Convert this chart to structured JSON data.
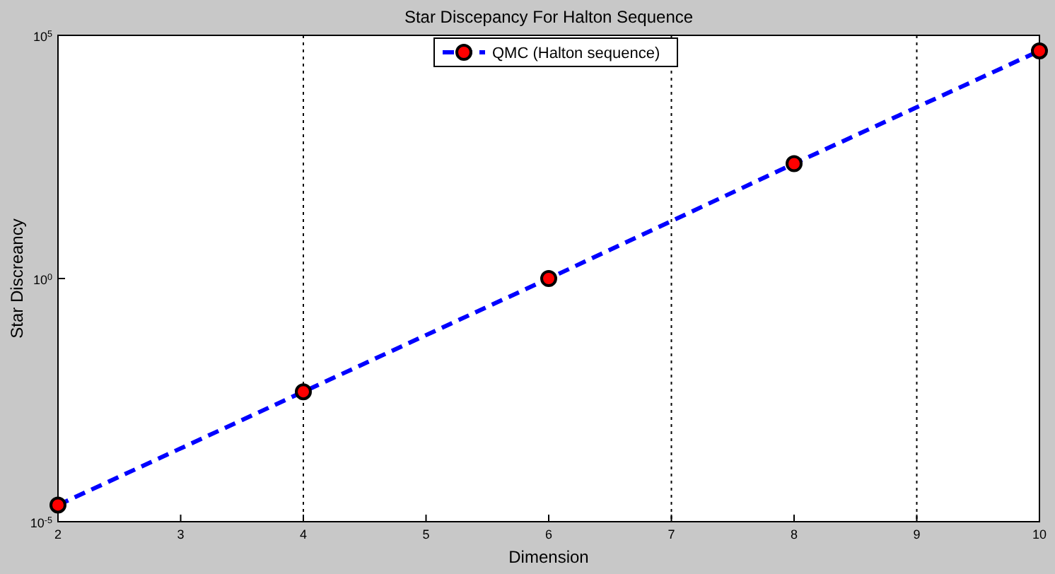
{
  "chart_data": {
    "type": "line",
    "title": "Star Discepancy For Halton Sequence",
    "xlabel": "Dimension",
    "ylabel": "Star Discreancy",
    "x": [
      2,
      4,
      6,
      8,
      10
    ],
    "series": [
      {
        "name": "QMC (Halton sequence)",
        "color": "#0000ff",
        "values": [
          2.2e-05,
          0.0047,
          1,
          230,
          48000
        ]
      }
    ],
    "log": "y",
    "xlim": [
      2,
      10
    ],
    "xticks": [
      2,
      3,
      4,
      5,
      6,
      7,
      8,
      9,
      10
    ],
    "ylim": [
      1e-05,
      100000
    ],
    "yticks": [
      {
        "value": 1e-05,
        "label": "10$^{-5}$"
      },
      {
        "value": 1,
        "label": "10$^{0}$"
      },
      {
        "value": 100000,
        "label": "10$^{5}$"
      }
    ],
    "ref_lines": [
      {
        "axis": "x",
        "value": 4,
        "line_style": "dotted"
      },
      {
        "axis": "x",
        "value": 7,
        "line_style": "dotted"
      },
      {
        "axis": "x",
        "value": 9,
        "line_style": "dotted"
      }
    ],
    "marker": "circle",
    "line_style": "dashed",
    "legend": "top"
  }
}
